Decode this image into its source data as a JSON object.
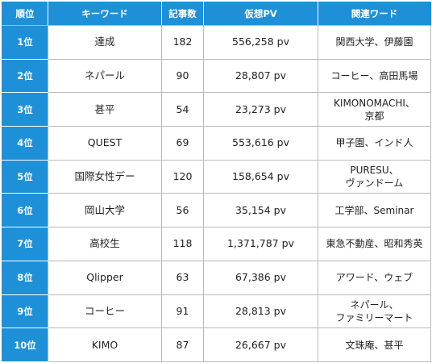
{
  "colors": {
    "header_bg": "#1e90d8",
    "header_text": "#ffffff",
    "border": "#b9b9b9",
    "text": "#222222"
  },
  "table": {
    "headers": [
      "順位",
      "キーワード",
      "記事数",
      "仮想PV",
      "関連ワード"
    ],
    "rows": [
      {
        "rank": "1位",
        "keyword": "達成",
        "count": "182",
        "pv": "556,258 pv",
        "related": [
          "関西大学、伊藤園"
        ]
      },
      {
        "rank": "2位",
        "keyword": "ネパール",
        "count": "90",
        "pv": "28,807 pv",
        "related": [
          "コーヒー、高田馬場"
        ]
      },
      {
        "rank": "3位",
        "keyword": "甚平",
        "count": "54",
        "pv": "23,273 pv",
        "related": [
          "KIMONOMACHI、",
          "京都"
        ]
      },
      {
        "rank": "4位",
        "keyword": "QUEST",
        "count": "69",
        "pv": "553,616 pv",
        "related": [
          "甲子園、インド人"
        ]
      },
      {
        "rank": "5位",
        "keyword": "国際女性デー",
        "count": "120",
        "pv": "158,654 pv",
        "related": [
          "PURESU、",
          "ヴァンドーム"
        ]
      },
      {
        "rank": "6位",
        "keyword": "岡山大学",
        "count": "56",
        "pv": "35,154 pv",
        "related": [
          "工学部、Seminar"
        ]
      },
      {
        "rank": "7位",
        "keyword": "高校生",
        "count": "118",
        "pv": "1,371,787 pv",
        "related": [
          "東急不動産、昭和秀英"
        ]
      },
      {
        "rank": "8位",
        "keyword": "Qlipper",
        "count": "63",
        "pv": "67,386 pv",
        "related": [
          "アワード、ウェブ"
        ]
      },
      {
        "rank": "9位",
        "keyword": "コーヒー",
        "count": "91",
        "pv": "28,813 pv",
        "related": [
          "ネパール、",
          "ファミリーマート"
        ]
      },
      {
        "rank": "10位",
        "keyword": "KIMO",
        "count": "87",
        "pv": "26,667 pv",
        "related": [
          "文珠庵、甚平"
        ]
      }
    ]
  }
}
